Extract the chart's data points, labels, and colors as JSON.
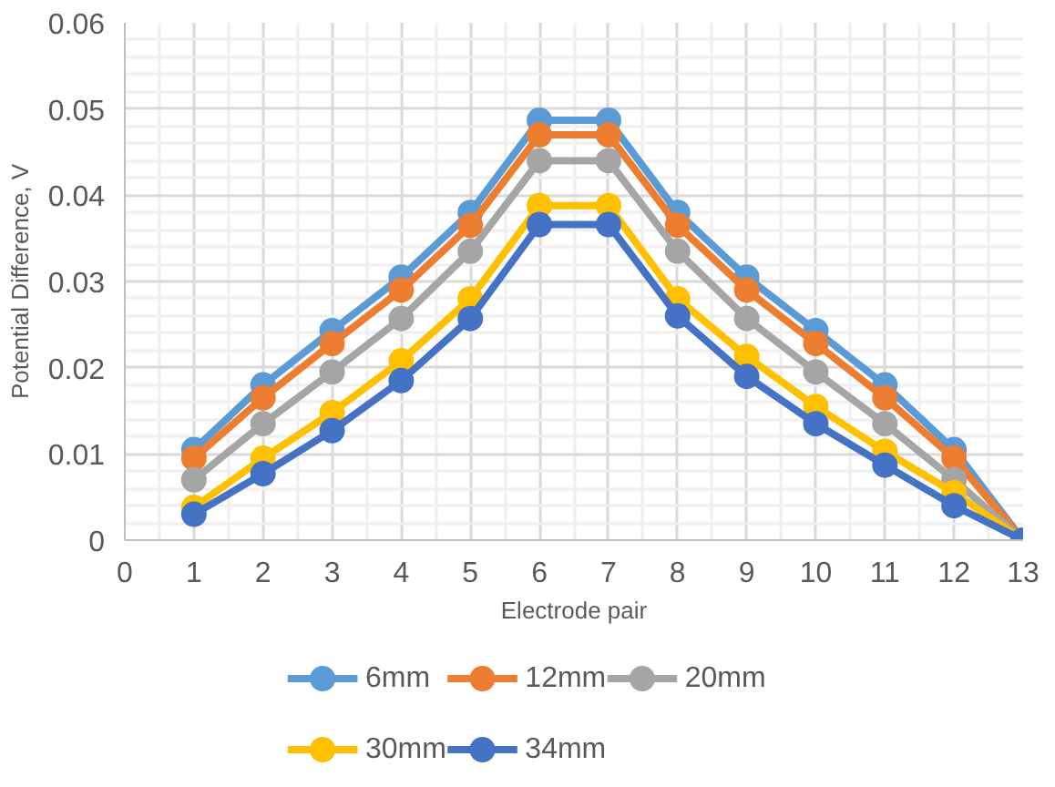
{
  "chart_data": {
    "type": "line",
    "xlabel": "Electrode pair",
    "ylabel": "Potential Difference, V",
    "x": [
      1,
      2,
      3,
      4,
      5,
      6,
      7,
      8,
      9,
      10,
      11,
      12,
      13
    ],
    "series": [
      {
        "name": "6mm",
        "color": "#5b9bd5",
        "values": [
          0.0105,
          0.018,
          0.0243,
          0.0305,
          0.038,
          0.0487,
          0.0487,
          0.038,
          0.0305,
          0.0243,
          0.018,
          0.0105,
          0
        ]
      },
      {
        "name": "12mm",
        "color": "#ed7d31",
        "values": [
          0.0095,
          0.0165,
          0.0228,
          0.029,
          0.0365,
          0.047,
          0.047,
          0.0365,
          0.029,
          0.0228,
          0.0165,
          0.0095,
          0
        ]
      },
      {
        "name": "20mm",
        "color": "#a5a5a5",
        "values": [
          0.007,
          0.0135,
          0.0195,
          0.0257,
          0.0335,
          0.044,
          0.044,
          0.0335,
          0.0257,
          0.0195,
          0.0135,
          0.007,
          0
        ]
      },
      {
        "name": "30mm",
        "color": "#ffc000",
        "values": [
          0.0038,
          0.0095,
          0.0148,
          0.0208,
          0.028,
          0.0388,
          0.0388,
          0.028,
          0.0213,
          0.0155,
          0.0103,
          0.0055,
          0
        ]
      },
      {
        "name": "34mm",
        "color": "#4472c4",
        "values": [
          0.003,
          0.0077,
          0.0127,
          0.0185,
          0.0257,
          0.0366,
          0.0366,
          0.026,
          0.019,
          0.0135,
          0.0087,
          0.004,
          0
        ]
      }
    ],
    "xlim": [
      0,
      13
    ],
    "ylim": [
      0,
      0.06
    ],
    "xticks": [
      0,
      1,
      2,
      3,
      4,
      5,
      6,
      7,
      8,
      9,
      10,
      11,
      12,
      13
    ],
    "yticks": [
      0,
      0.01,
      0.02,
      0.03,
      0.04,
      0.05,
      0.06
    ],
    "grid": true,
    "legend": "bottom",
    "marker": "circle",
    "line_style": "solid"
  }
}
